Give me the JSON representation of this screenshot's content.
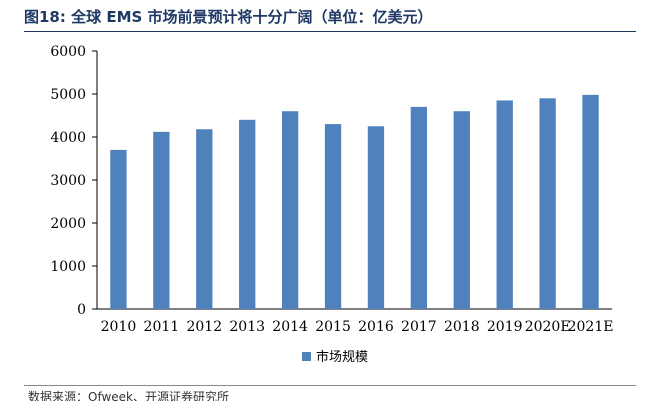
{
  "figure": {
    "title": "图18:  全球 EMS 市场前景预计将十分广阔（单位：亿美元）",
    "source": "数据来源：Ofweek、开源证券研究所"
  },
  "chart_data": {
    "type": "bar",
    "categories": [
      "2010",
      "2011",
      "2012",
      "2013",
      "2014",
      "2015",
      "2016",
      "2017",
      "2018",
      "2019",
      "2020E",
      "2021E"
    ],
    "series": [
      {
        "name": "市场规模",
        "values": [
          3700,
          4120,
          4180,
          4400,
          4600,
          4300,
          4250,
          4700,
          4600,
          4850,
          4900,
          4980
        ],
        "color": "#4f81bd"
      }
    ],
    "ylim": [
      0,
      6000
    ],
    "yticks": [
      0,
      1000,
      2000,
      3000,
      4000,
      5000,
      6000
    ],
    "grid": false,
    "legend_position": "bottom"
  }
}
